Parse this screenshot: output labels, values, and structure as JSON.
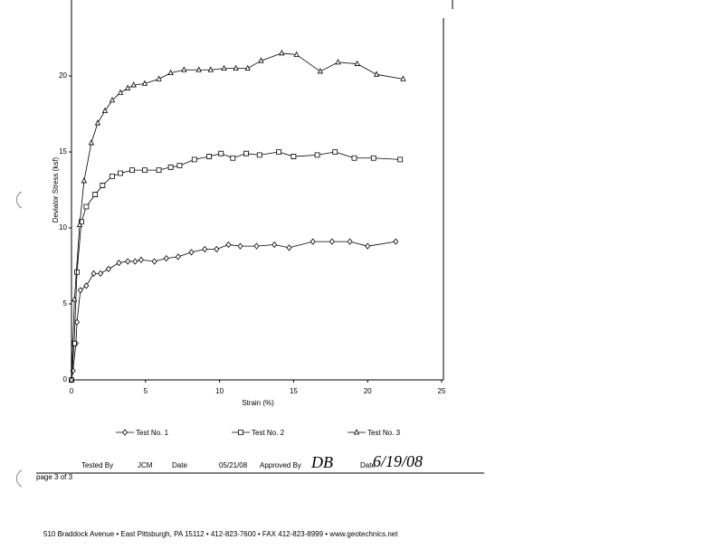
{
  "chart_data": {
    "type": "line",
    "x_label": "Strain (%)",
    "y_label": "Deviator Stress (ksf)",
    "xlim": [
      0,
      25
    ],
    "ylim": [
      0,
      25
    ],
    "xticks": [
      0,
      5,
      10,
      15,
      20,
      25
    ],
    "yticks": [
      0,
      5,
      10,
      15,
      20
    ],
    "legend": "bottom",
    "series": [
      {
        "name": "Test No. 1",
        "color": "#000000",
        "marker": "diamond",
        "x": [
          0,
          0.1,
          0.3,
          0.37,
          0.6,
          1.0,
          1.5,
          1.96,
          2.5,
          3.2,
          3.8,
          4.3,
          4.7,
          5.6,
          6.4,
          7.2,
          8.1,
          9.0,
          9.8,
          10.6,
          11.4,
          12.5,
          13.7,
          14.7,
          16.3,
          17.6,
          18.8,
          20.0,
          21.9
        ],
        "values": [
          0,
          0.6,
          2.4,
          3.8,
          5.9,
          6.2,
          7.0,
          7.0,
          7.3,
          7.7,
          7.8,
          7.8,
          7.9,
          7.8,
          8.0,
          8.1,
          8.4,
          8.6,
          8.6,
          8.9,
          8.8,
          8.8,
          8.9,
          8.7,
          9.1,
          9.1,
          9.1,
          8.8,
          9.1
        ]
      },
      {
        "name": "Test No. 2",
        "color": "#000000",
        "marker": "square",
        "x": [
          0,
          0.18,
          0.37,
          0.67,
          1.0,
          1.6,
          2.1,
          2.75,
          3.3,
          4.1,
          4.95,
          5.9,
          6.7,
          7.3,
          8.3,
          9.3,
          10.1,
          10.9,
          11.8,
          12.7,
          14.0,
          15.0,
          16.6,
          17.8,
          19.1,
          20.4,
          22.2
        ],
        "values": [
          0,
          2.4,
          7.1,
          10.4,
          11.4,
          12.2,
          12.8,
          13.4,
          13.6,
          13.8,
          13.8,
          13.8,
          14.0,
          14.1,
          14.5,
          14.7,
          14.9,
          14.6,
          14.9,
          14.8,
          15.0,
          14.7,
          14.8,
          15.0,
          14.6,
          14.6,
          14.5
        ]
      },
      {
        "name": "Test No. 3",
        "color": "#000000",
        "marker": "triangle",
        "x": [
          0,
          0.2,
          0.55,
          0.85,
          1.34,
          1.77,
          2.26,
          2.75,
          3.3,
          3.8,
          4.2,
          4.95,
          5.9,
          6.7,
          7.6,
          8.6,
          9.4,
          10.3,
          11.1,
          11.9,
          12.8,
          14.2,
          15.2,
          16.8,
          18.0,
          19.3,
          20.6,
          22.4
        ],
        "values": [
          0,
          5.3,
          10.2,
          13.1,
          15.6,
          16.9,
          17.7,
          18.4,
          18.9,
          19.2,
          19.4,
          19.5,
          19.8,
          20.2,
          20.4,
          20.4,
          20.4,
          20.5,
          20.5,
          20.5,
          21.0,
          21.5,
          21.4,
          20.3,
          20.9,
          20.8,
          20.1,
          19.8
        ]
      }
    ]
  },
  "document": {
    "tested_by_label": "Tested By",
    "tested_by": "JCM",
    "date_label": "Date",
    "date": "05/21/08",
    "approved_by_label": "Approved By",
    "approved_by": "DB",
    "approved_date_label": "Date",
    "approved_date": "6/19/08",
    "page": "page 3 of 3",
    "footer": "510 Braddock Avenue  •  East Pittsburgh, PA 15112  •  412-823-7600  •  FAX 412-823-8999  •  www.geotechnics.net"
  }
}
